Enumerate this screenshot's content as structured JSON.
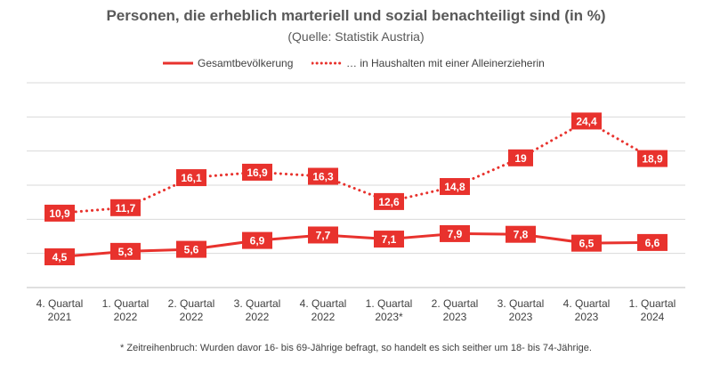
{
  "chart_data": {
    "type": "line",
    "title": "Personen, die erheblich marteriell und sozial benachteiligt sind (in %)",
    "subtitle": "(Quelle: Statistik Austria)",
    "categories": [
      [
        "4. Quartal",
        "2021"
      ],
      [
        "1. Quartal",
        "2022"
      ],
      [
        "2. Quartal",
        "2022"
      ],
      [
        "3. Quartal",
        "2022"
      ],
      [
        "4. Quartal",
        "2022"
      ],
      [
        "1. Quartal",
        "2023*"
      ],
      [
        "2. Quartal",
        "2023"
      ],
      [
        "3. Quartal",
        "2023"
      ],
      [
        "4. Quartal",
        "2023"
      ],
      [
        "1. Quartal",
        "2024"
      ]
    ],
    "series": [
      {
        "name": "Gesamtbevölkerung",
        "style": "solid",
        "values": [
          4.5,
          5.3,
          5.6,
          6.9,
          7.7,
          7.1,
          7.9,
          7.8,
          6.5,
          6.6
        ],
        "labels": [
          "4,5",
          "5,3",
          "5,6",
          "6,9",
          "7,7",
          "7,1",
          "7,9",
          "7,8",
          "6,5",
          "6,6"
        ]
      },
      {
        "name": "… in Haushalten mit einer Alleinerzieherin",
        "style": "dotted",
        "values": [
          10.9,
          11.7,
          16.1,
          16.9,
          16.3,
          12.6,
          14.8,
          19,
          24.4,
          18.9
        ],
        "labels": [
          "10,9",
          "11,7",
          "16,1",
          "16,9",
          "16,3",
          "12,6",
          "14,8",
          "19",
          "24,4",
          "18,9"
        ]
      }
    ],
    "ylim": [
      0,
      30
    ],
    "ygrid": [
      5,
      10,
      15,
      20,
      25,
      30
    ],
    "grid": true,
    "legend": "top",
    "color": "#e8322d",
    "footnote": "* Zeitreihenbruch: Wurden davor 16- bis 69-Jährige befragt, so handelt es sich seither um 18- bis 74-Jährige."
  }
}
